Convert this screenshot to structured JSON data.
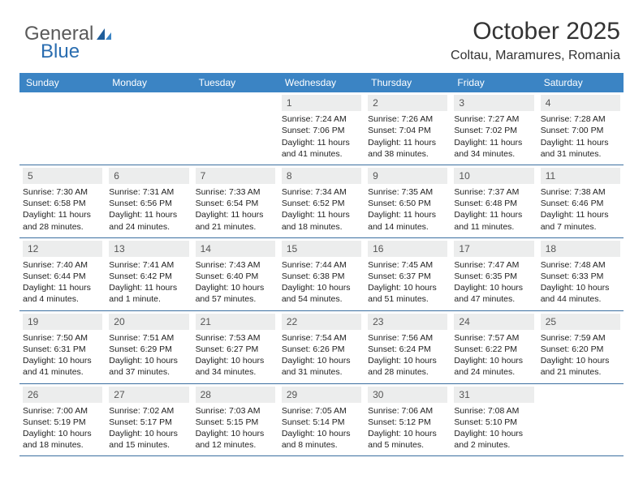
{
  "logo": {
    "textA": "General",
    "textB": "Blue",
    "colorA": "#5a5a5a",
    "colorB": "#2a6db0"
  },
  "title": "October 2025",
  "location": "Coltau, Maramures, Romania",
  "header_bg": "#3b84c4",
  "week_border": "#3b6fa0",
  "daynum_bg": "#eceded",
  "dayNames": [
    "Sunday",
    "Monday",
    "Tuesday",
    "Wednesday",
    "Thursday",
    "Friday",
    "Saturday"
  ],
  "weeks": [
    [
      {
        "n": "",
        "empty": true
      },
      {
        "n": "",
        "empty": true
      },
      {
        "n": "",
        "empty": true
      },
      {
        "n": "1",
        "sunrise": "7:24 AM",
        "sunset": "7:06 PM",
        "daylight": "11 hours and 41 minutes."
      },
      {
        "n": "2",
        "sunrise": "7:26 AM",
        "sunset": "7:04 PM",
        "daylight": "11 hours and 38 minutes."
      },
      {
        "n": "3",
        "sunrise": "7:27 AM",
        "sunset": "7:02 PM",
        "daylight": "11 hours and 34 minutes."
      },
      {
        "n": "4",
        "sunrise": "7:28 AM",
        "sunset": "7:00 PM",
        "daylight": "11 hours and 31 minutes."
      }
    ],
    [
      {
        "n": "5",
        "sunrise": "7:30 AM",
        "sunset": "6:58 PM",
        "daylight": "11 hours and 28 minutes."
      },
      {
        "n": "6",
        "sunrise": "7:31 AM",
        "sunset": "6:56 PM",
        "daylight": "11 hours and 24 minutes."
      },
      {
        "n": "7",
        "sunrise": "7:33 AM",
        "sunset": "6:54 PM",
        "daylight": "11 hours and 21 minutes."
      },
      {
        "n": "8",
        "sunrise": "7:34 AM",
        "sunset": "6:52 PM",
        "daylight": "11 hours and 18 minutes."
      },
      {
        "n": "9",
        "sunrise": "7:35 AM",
        "sunset": "6:50 PM",
        "daylight": "11 hours and 14 minutes."
      },
      {
        "n": "10",
        "sunrise": "7:37 AM",
        "sunset": "6:48 PM",
        "daylight": "11 hours and 11 minutes."
      },
      {
        "n": "11",
        "sunrise": "7:38 AM",
        "sunset": "6:46 PM",
        "daylight": "11 hours and 7 minutes."
      }
    ],
    [
      {
        "n": "12",
        "sunrise": "7:40 AM",
        "sunset": "6:44 PM",
        "daylight": "11 hours and 4 minutes."
      },
      {
        "n": "13",
        "sunrise": "7:41 AM",
        "sunset": "6:42 PM",
        "daylight": "11 hours and 1 minute."
      },
      {
        "n": "14",
        "sunrise": "7:43 AM",
        "sunset": "6:40 PM",
        "daylight": "10 hours and 57 minutes."
      },
      {
        "n": "15",
        "sunrise": "7:44 AM",
        "sunset": "6:38 PM",
        "daylight": "10 hours and 54 minutes."
      },
      {
        "n": "16",
        "sunrise": "7:45 AM",
        "sunset": "6:37 PM",
        "daylight": "10 hours and 51 minutes."
      },
      {
        "n": "17",
        "sunrise": "7:47 AM",
        "sunset": "6:35 PM",
        "daylight": "10 hours and 47 minutes."
      },
      {
        "n": "18",
        "sunrise": "7:48 AM",
        "sunset": "6:33 PM",
        "daylight": "10 hours and 44 minutes."
      }
    ],
    [
      {
        "n": "19",
        "sunrise": "7:50 AM",
        "sunset": "6:31 PM",
        "daylight": "10 hours and 41 minutes."
      },
      {
        "n": "20",
        "sunrise": "7:51 AM",
        "sunset": "6:29 PM",
        "daylight": "10 hours and 37 minutes."
      },
      {
        "n": "21",
        "sunrise": "7:53 AM",
        "sunset": "6:27 PM",
        "daylight": "10 hours and 34 minutes."
      },
      {
        "n": "22",
        "sunrise": "7:54 AM",
        "sunset": "6:26 PM",
        "daylight": "10 hours and 31 minutes."
      },
      {
        "n": "23",
        "sunrise": "7:56 AM",
        "sunset": "6:24 PM",
        "daylight": "10 hours and 28 minutes."
      },
      {
        "n": "24",
        "sunrise": "7:57 AM",
        "sunset": "6:22 PM",
        "daylight": "10 hours and 24 minutes."
      },
      {
        "n": "25",
        "sunrise": "7:59 AM",
        "sunset": "6:20 PM",
        "daylight": "10 hours and 21 minutes."
      }
    ],
    [
      {
        "n": "26",
        "sunrise": "7:00 AM",
        "sunset": "5:19 PM",
        "daylight": "10 hours and 18 minutes."
      },
      {
        "n": "27",
        "sunrise": "7:02 AM",
        "sunset": "5:17 PM",
        "daylight": "10 hours and 15 minutes."
      },
      {
        "n": "28",
        "sunrise": "7:03 AM",
        "sunset": "5:15 PM",
        "daylight": "10 hours and 12 minutes."
      },
      {
        "n": "29",
        "sunrise": "7:05 AM",
        "sunset": "5:14 PM",
        "daylight": "10 hours and 8 minutes."
      },
      {
        "n": "30",
        "sunrise": "7:06 AM",
        "sunset": "5:12 PM",
        "daylight": "10 hours and 5 minutes."
      },
      {
        "n": "31",
        "sunrise": "7:08 AM",
        "sunset": "5:10 PM",
        "daylight": "10 hours and 2 minutes."
      },
      {
        "n": "",
        "empty": true
      }
    ]
  ],
  "labels": {
    "sunrise": "Sunrise: ",
    "sunset": "Sunset: ",
    "daylight": "Daylight: "
  }
}
